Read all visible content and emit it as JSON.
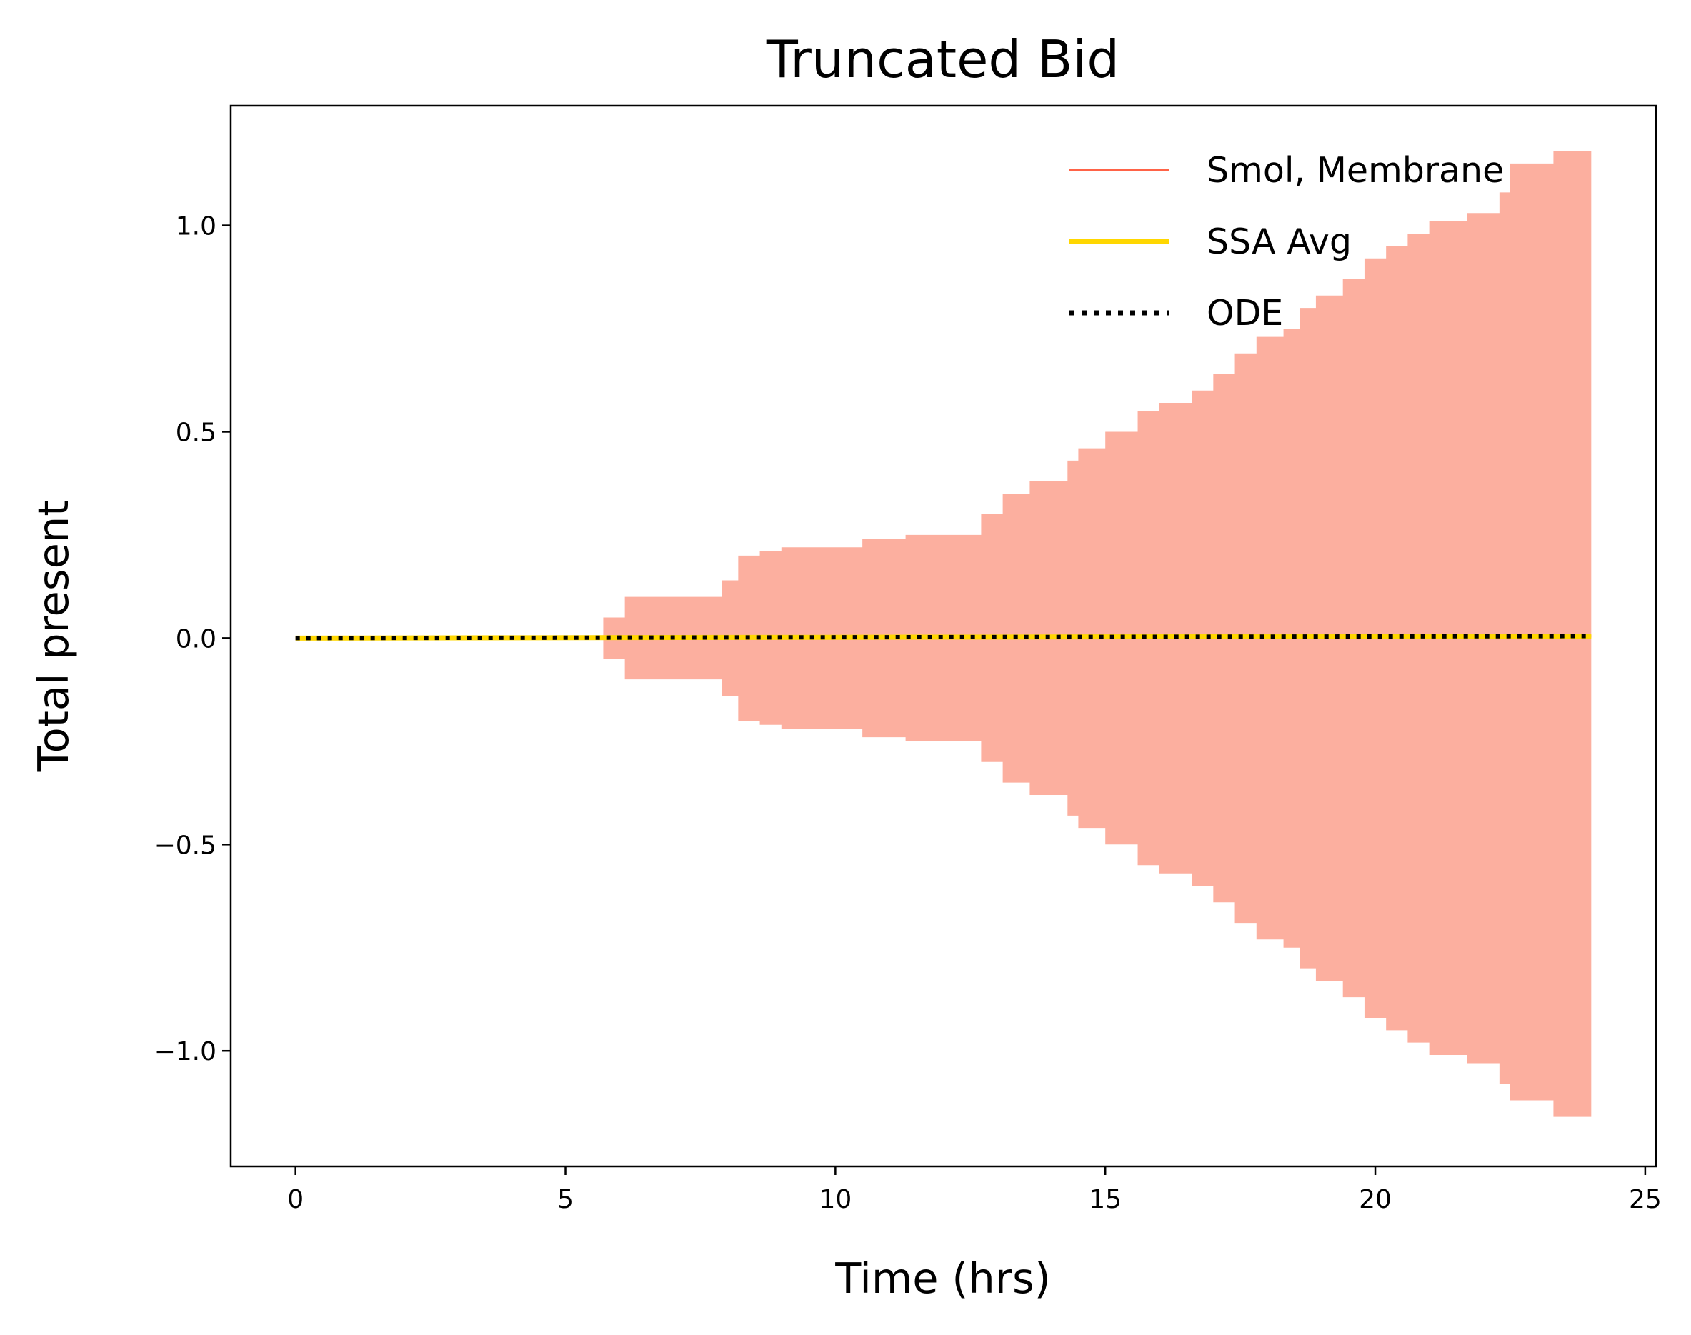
{
  "chart_data": {
    "type": "line",
    "title": "Truncated Bid",
    "xlabel": "Time (hrs)",
    "ylabel": "Total present",
    "xlim": [
      -1.2,
      25.2
    ],
    "ylim": [
      -1.28,
      1.29
    ],
    "xticks": [
      0,
      5,
      10,
      15,
      20,
      25
    ],
    "xtick_labels": [
      "0",
      "5",
      "10",
      "15",
      "20",
      "25"
    ],
    "yticks": [
      1.0,
      0.5,
      0.0,
      -0.5,
      -1.0
    ],
    "ytick_labels": [
      "1.0",
      "0.5",
      "0.0",
      "−0.5",
      "−1.0"
    ],
    "grid": false,
    "legend_position": "top-right",
    "colors": {
      "smol": "#ff6347",
      "band": "#fcaf9f",
      "ssa": "#ffd700",
      "ode": "#000000"
    },
    "series": [
      {
        "name": "Smol, Membrane",
        "style": "solid",
        "x": [
          0,
          24
        ],
        "values": [
          0.0,
          0.005
        ],
        "band": {
          "x": [
            0,
            5.7,
            6.1,
            7.9,
            8.2,
            8.6,
            9.0,
            10.5,
            11.3,
            12.7,
            13.1,
            13.6,
            14.3,
            14.5,
            15.0,
            15.6,
            16.0,
            16.6,
            17.0,
            17.4,
            17.8,
            18.3,
            18.6,
            18.9,
            19.4,
            19.8,
            20.2,
            20.6,
            21.0,
            21.7,
            22.3,
            22.5,
            23.3,
            24.0
          ],
          "upper": [
            0,
            0.05,
            0.1,
            0.14,
            0.2,
            0.21,
            0.22,
            0.24,
            0.25,
            0.3,
            0.35,
            0.38,
            0.43,
            0.46,
            0.5,
            0.55,
            0.57,
            0.6,
            0.64,
            0.69,
            0.73,
            0.75,
            0.8,
            0.83,
            0.87,
            0.92,
            0.95,
            0.98,
            1.01,
            1.03,
            1.08,
            1.15,
            1.18,
            1.18
          ],
          "lower": [
            0,
            -0.05,
            -0.1,
            -0.14,
            -0.2,
            -0.21,
            -0.22,
            -0.24,
            -0.25,
            -0.3,
            -0.35,
            -0.38,
            -0.43,
            -0.46,
            -0.5,
            -0.55,
            -0.57,
            -0.6,
            -0.64,
            -0.69,
            -0.73,
            -0.75,
            -0.8,
            -0.83,
            -0.87,
            -0.92,
            -0.95,
            -0.98,
            -1.01,
            -1.03,
            -1.08,
            -1.12,
            -1.16,
            -1.16
          ]
        }
      },
      {
        "name": "SSA Avg",
        "style": "solid",
        "x": [
          0,
          24
        ],
        "values": [
          0.0,
          0.005
        ]
      },
      {
        "name": "ODE",
        "style": "dotted",
        "x": [
          0,
          24
        ],
        "values": [
          0.0,
          0.005
        ]
      }
    ]
  }
}
